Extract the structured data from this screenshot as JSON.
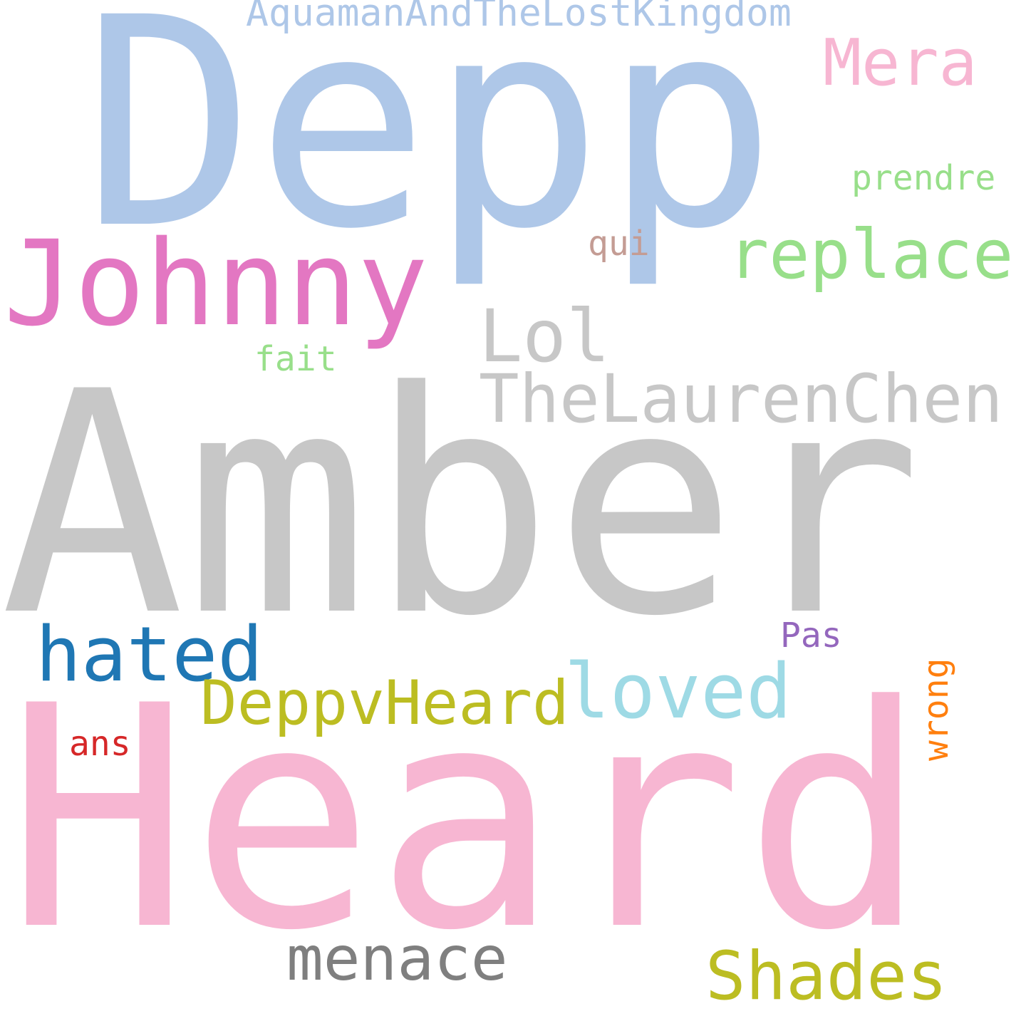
{
  "words": {
    "depp": {
      "text": "Depp",
      "color": "#aec7e8"
    },
    "amber": {
      "text": "Amber",
      "color": "#c7c7c7"
    },
    "heard": {
      "text": "Heard",
      "color": "#f7b6d2"
    },
    "johnny": {
      "text": "Johnny",
      "color": "#e377c2"
    },
    "aquaman": {
      "text": "AquamanAndTheLostKingdom",
      "color": "#aec7e8"
    },
    "mera": {
      "text": "Mera",
      "color": "#f7b6d2"
    },
    "prendre": {
      "text": "prendre",
      "color": "#98df8a"
    },
    "replace": {
      "text": "replace",
      "color": "#98df8a"
    },
    "qui": {
      "text": "qui",
      "color": "#c49c94"
    },
    "lol": {
      "text": "Lol",
      "color": "#c7c7c7"
    },
    "fait": {
      "text": "fait",
      "color": "#98df8a"
    },
    "laurenchen": {
      "text": "TheLaurenChen",
      "color": "#c7c7c7"
    },
    "hated": {
      "text": "hated",
      "color": "#1f77b4"
    },
    "pas": {
      "text": "Pas",
      "color": "#9467bd"
    },
    "wrong": {
      "text": "wrong",
      "color": "#ff7f0e"
    },
    "deppvheard": {
      "text": "DeppvHeard",
      "color": "#bcbd22"
    },
    "loved": {
      "text": "loved",
      "color": "#9edae5"
    },
    "ans": {
      "text": "ans",
      "color": "#d62728"
    },
    "menace": {
      "text": "menace",
      "color": "#7f7f7f"
    },
    "shades": {
      "text": "Shades",
      "color": "#bcbd22"
    }
  }
}
